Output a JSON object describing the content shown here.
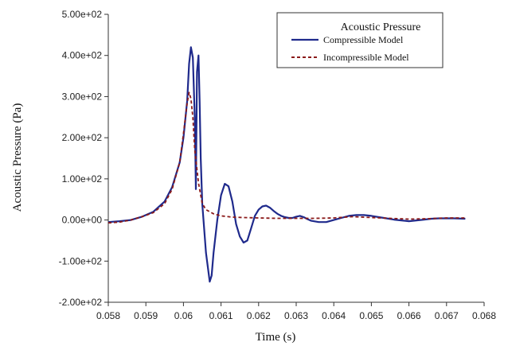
{
  "chart_data": {
    "type": "line",
    "title": "",
    "xlabel": "Time (s)",
    "ylabel": "Acoustic Pressure (Pa)",
    "xlim": [
      0.058,
      0.068
    ],
    "ylim": [
      -200,
      500
    ],
    "x_ticks": [
      {
        "value": 0.058,
        "label": "0.058"
      },
      {
        "value": 0.059,
        "label": "0.059"
      },
      {
        "value": 0.06,
        "label": "0.06"
      },
      {
        "value": 0.061,
        "label": "0.061"
      },
      {
        "value": 0.062,
        "label": "0.062"
      },
      {
        "value": 0.063,
        "label": "0.063"
      },
      {
        "value": 0.064,
        "label": "0.064"
      },
      {
        "value": 0.065,
        "label": "0.065"
      },
      {
        "value": 0.066,
        "label": "0.066"
      },
      {
        "value": 0.067,
        "label": "0.067"
      },
      {
        "value": 0.068,
        "label": "0.068"
      }
    ],
    "y_ticks": [
      {
        "value": 500,
        "label": "5.00e+02"
      },
      {
        "value": 400,
        "label": "4.00e+02"
      },
      {
        "value": 300,
        "label": "3.00e+02"
      },
      {
        "value": 200,
        "label": "2.00e+02"
      },
      {
        "value": 100,
        "label": "1.00e+02"
      },
      {
        "value": 0,
        "label": "0.00e+00"
      },
      {
        "value": -100,
        "label": "-1.00e+02"
      },
      {
        "value": -200,
        "label": "-2.00e+02"
      }
    ],
    "grid": false,
    "legend": {
      "title": "Acoustic Pressure",
      "position": "top-right"
    },
    "series": [
      {
        "name": "Compressible Model",
        "color": "#1f2a8c",
        "style": "solid",
        "points": [
          [
            0.058,
            -5
          ],
          [
            0.0583,
            -3
          ],
          [
            0.0586,
            0
          ],
          [
            0.0589,
            8
          ],
          [
            0.0592,
            20
          ],
          [
            0.0595,
            45
          ],
          [
            0.0597,
            80
          ],
          [
            0.0599,
            140
          ],
          [
            0.06,
            200
          ],
          [
            0.0601,
            290
          ],
          [
            0.06015,
            380
          ],
          [
            0.0602,
            420
          ],
          [
            0.06025,
            395
          ],
          [
            0.0603,
            250
          ],
          [
            0.06033,
            75
          ],
          [
            0.06036,
            360
          ],
          [
            0.0604,
            400
          ],
          [
            0.06043,
            290
          ],
          [
            0.06046,
            150
          ],
          [
            0.0605,
            40
          ],
          [
            0.0606,
            -80
          ],
          [
            0.0607,
            -150
          ],
          [
            0.06075,
            -135
          ],
          [
            0.0608,
            -80
          ],
          [
            0.0609,
            0
          ],
          [
            0.061,
            60
          ],
          [
            0.0611,
            88
          ],
          [
            0.0612,
            82
          ],
          [
            0.0613,
            45
          ],
          [
            0.0614,
            -10
          ],
          [
            0.0615,
            -40
          ],
          [
            0.0616,
            -55
          ],
          [
            0.0617,
            -50
          ],
          [
            0.0618,
            -20
          ],
          [
            0.0619,
            10
          ],
          [
            0.062,
            25
          ],
          [
            0.0621,
            33
          ],
          [
            0.0622,
            35
          ],
          [
            0.0623,
            30
          ],
          [
            0.0624,
            22
          ],
          [
            0.0625,
            15
          ],
          [
            0.0626,
            10
          ],
          [
            0.0627,
            7
          ],
          [
            0.0628,
            5
          ],
          [
            0.0629,
            5
          ],
          [
            0.063,
            8
          ],
          [
            0.0631,
            10
          ],
          [
            0.0632,
            7
          ],
          [
            0.0633,
            2
          ],
          [
            0.0634,
            -2
          ],
          [
            0.0636,
            -5
          ],
          [
            0.0638,
            -5
          ],
          [
            0.064,
            0
          ],
          [
            0.0642,
            5
          ],
          [
            0.0644,
            10
          ],
          [
            0.0646,
            12
          ],
          [
            0.0648,
            12
          ],
          [
            0.065,
            10
          ],
          [
            0.0652,
            7
          ],
          [
            0.0654,
            4
          ],
          [
            0.0656,
            1
          ],
          [
            0.0658,
            -1
          ],
          [
            0.066,
            -3
          ],
          [
            0.0662,
            -1
          ],
          [
            0.0664,
            1
          ],
          [
            0.0666,
            3
          ],
          [
            0.0668,
            4
          ],
          [
            0.067,
            4
          ],
          [
            0.0672,
            4
          ],
          [
            0.0675,
            3
          ]
        ]
      },
      {
        "name": "Incompressible Model",
        "color": "#8b1a1a",
        "style": "dashed",
        "points": [
          [
            0.058,
            -7
          ],
          [
            0.0583,
            -5
          ],
          [
            0.0586,
            0
          ],
          [
            0.0589,
            8
          ],
          [
            0.0592,
            18
          ],
          [
            0.0595,
            40
          ],
          [
            0.0597,
            75
          ],
          [
            0.0599,
            140
          ],
          [
            0.06,
            210
          ],
          [
            0.0601,
            285
          ],
          [
            0.06015,
            310
          ],
          [
            0.0602,
            295
          ],
          [
            0.06025,
            250
          ],
          [
            0.0603,
            170
          ],
          [
            0.0604,
            90
          ],
          [
            0.0605,
            40
          ],
          [
            0.0606,
            25
          ],
          [
            0.0608,
            15
          ],
          [
            0.061,
            10
          ],
          [
            0.0613,
            7
          ],
          [
            0.0616,
            6
          ],
          [
            0.062,
            5
          ],
          [
            0.0625,
            4
          ],
          [
            0.063,
            4
          ],
          [
            0.0635,
            4
          ],
          [
            0.064,
            5
          ],
          [
            0.0645,
            8
          ],
          [
            0.065,
            6
          ],
          [
            0.0655,
            4
          ],
          [
            0.066,
            2
          ],
          [
            0.0665,
            3
          ],
          [
            0.067,
            5
          ],
          [
            0.0675,
            5
          ]
        ]
      }
    ]
  }
}
